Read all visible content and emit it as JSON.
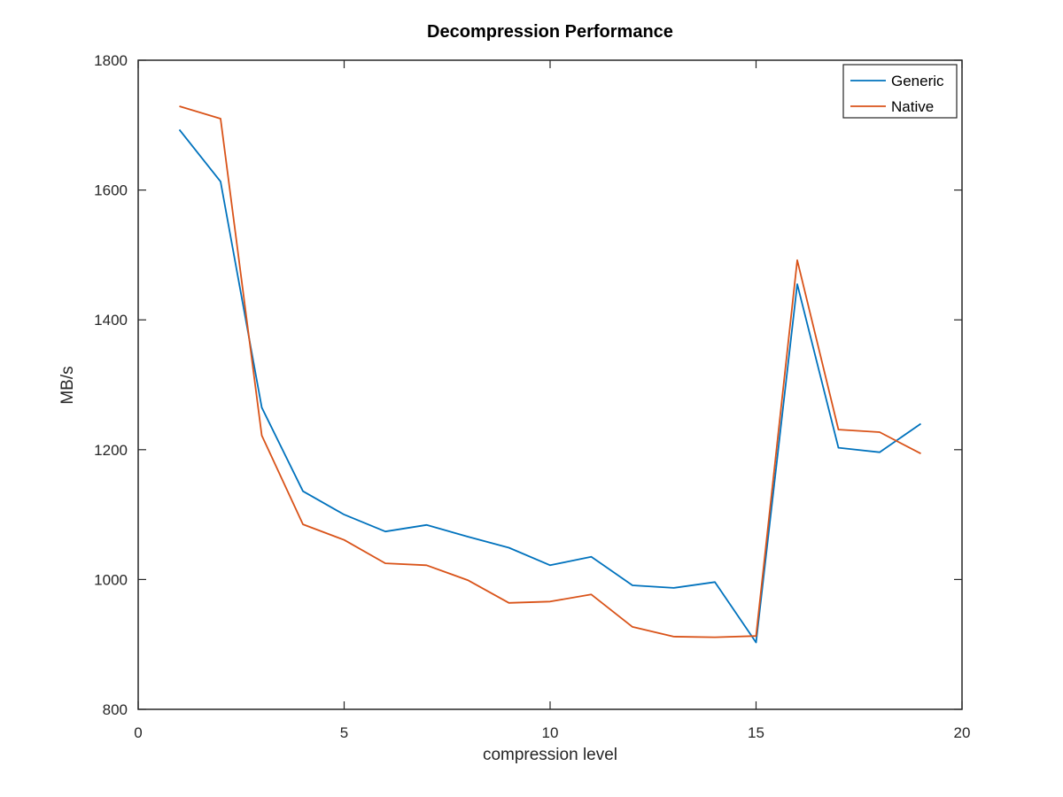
{
  "chart_data": {
    "type": "line",
    "title": "Decompression Performance",
    "xlabel": "compression level",
    "ylabel": "MB/s",
    "xlim": [
      0,
      20
    ],
    "ylim": [
      800,
      1800
    ],
    "xticks": [
      0,
      5,
      10,
      15,
      20
    ],
    "yticks": [
      800,
      1000,
      1200,
      1400,
      1600,
      1800
    ],
    "grid": false,
    "legend_position": "top-right",
    "x": [
      1,
      2,
      3,
      4,
      5,
      6,
      7,
      8,
      9,
      10,
      11,
      12,
      13,
      14,
      15,
      16,
      17,
      18,
      19
    ],
    "series": [
      {
        "name": "Generic",
        "color": "#0072BD",
        "values": [
          1693,
          1613,
          1265,
          1136,
          1100,
          1074,
          1084,
          1066,
          1049,
          1022,
          1035,
          991,
          987,
          996,
          903,
          1455,
          1203,
          1196,
          1240
        ]
      },
      {
        "name": "Native",
        "color": "#D95319",
        "values": [
          1729,
          1710,
          1222,
          1085,
          1061,
          1025,
          1022,
          999,
          964,
          966,
          977,
          927,
          912,
          911,
          913,
          1492,
          1231,
          1227,
          1194
        ]
      }
    ]
  }
}
